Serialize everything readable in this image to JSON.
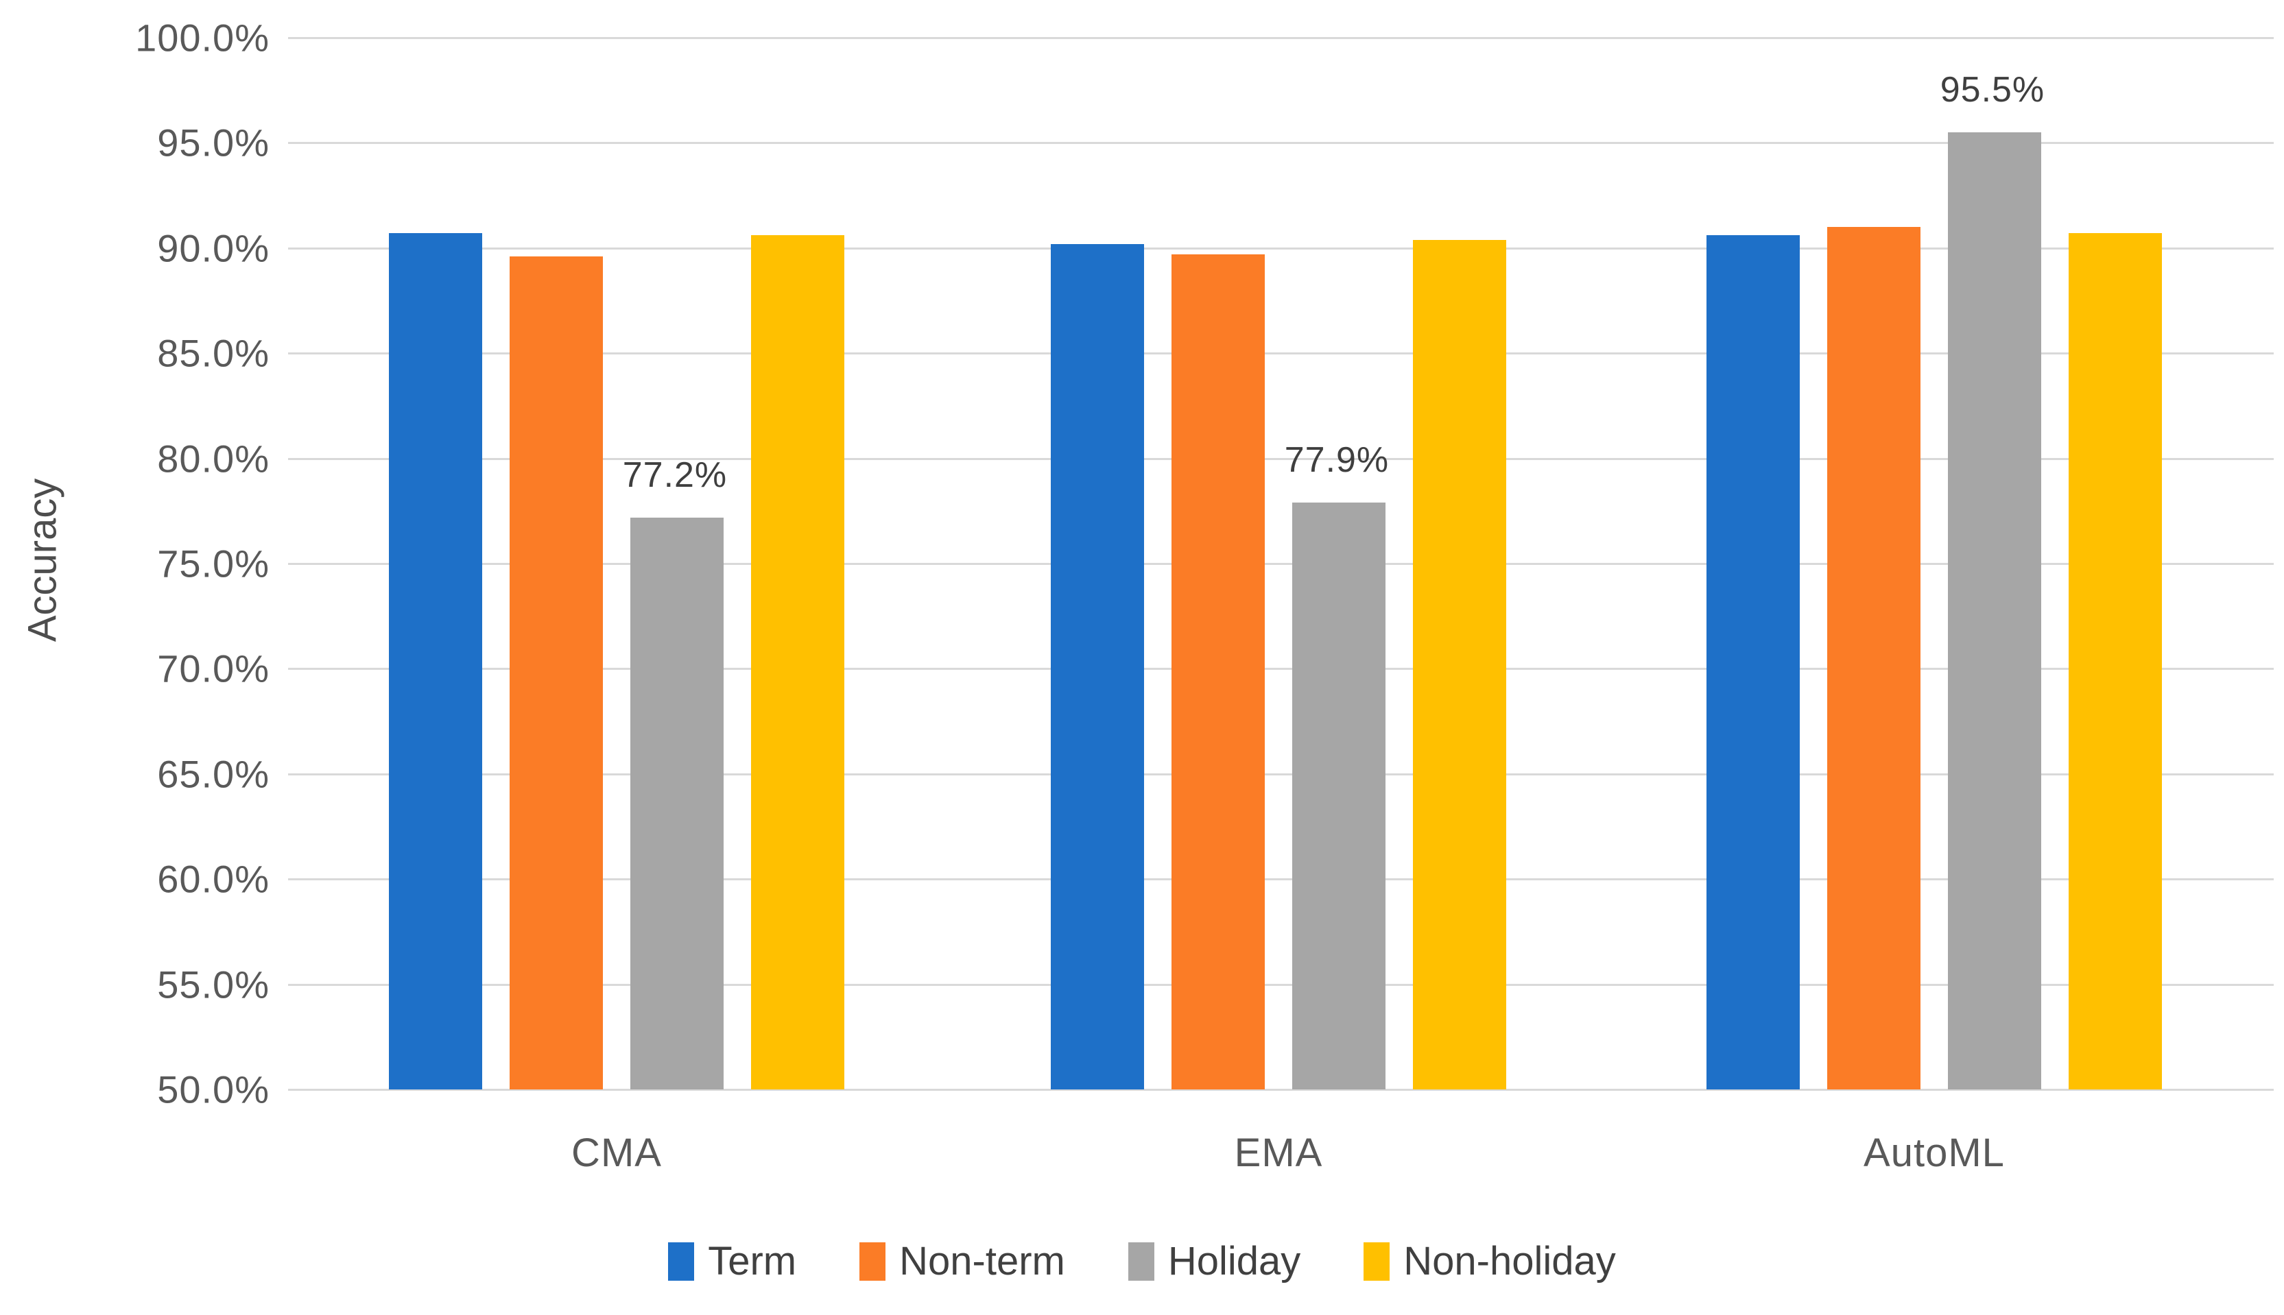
{
  "chart_data": {
    "type": "bar",
    "title": "",
    "xlabel": "",
    "ylabel": "Accuracy",
    "ylim": [
      50,
      100
    ],
    "ytick_step": 5,
    "ytick_labels": [
      "100.0%",
      "95.0%",
      "90.0%",
      "85.0%",
      "80.0%",
      "75.0%",
      "70.0%",
      "65.0%",
      "60.0%",
      "55.0%",
      "50.0%"
    ],
    "grid": true,
    "legend_position": "bottom",
    "categories": [
      "CMA",
      "EMA",
      "AutoML"
    ],
    "series": [
      {
        "name": "Term",
        "color": "#1e70c8",
        "values": [
          90.7,
          90.2,
          90.6
        ],
        "data_labels": null
      },
      {
        "name": "Non-term",
        "color": "#fb7c26",
        "values": [
          89.6,
          89.7,
          91.0
        ],
        "data_labels": null
      },
      {
        "name": "Holiday",
        "color": "#a6a6a6",
        "values": [
          77.2,
          77.9,
          95.5
        ],
        "data_labels": [
          "77.2%",
          "77.9%",
          "95.5%"
        ]
      },
      {
        "name": "Non-holiday",
        "color": "#ffc000",
        "values": [
          90.6,
          90.4,
          90.7
        ],
        "data_labels": null
      }
    ]
  },
  "style": {
    "gridline_color": "#d9d9d9",
    "tick_text_color": "#595959",
    "data_label_color": "#3f3f3f"
  }
}
